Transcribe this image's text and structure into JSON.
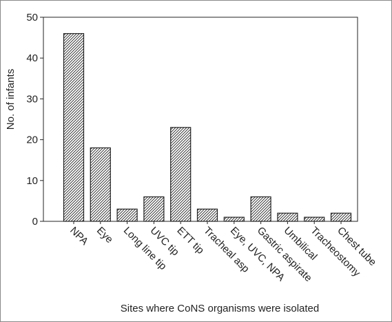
{
  "chart_data": {
    "type": "bar",
    "xlabel": "Sites where CoNS organisms were isolated",
    "ylabel": "No. of infants",
    "ylim": [
      0,
      50
    ],
    "yticks": [
      0,
      10,
      20,
      30,
      40,
      50
    ],
    "grid": false,
    "legend": "none",
    "bar_fill": "hatched",
    "categories": [
      "NPA",
      "Eye",
      "Long line tip",
      "UVC tip",
      "ETT tip",
      "Tracheal asp",
      "Eye, UVC, NPA",
      "Gastric aspirate",
      "Umbilical",
      "Tracheostomy",
      "Chest tube"
    ],
    "values": [
      46,
      18,
      3,
      6,
      23,
      3,
      1,
      6,
      2,
      1,
      2
    ]
  },
  "colors": {
    "bar_stroke": "#222222",
    "hatch": "#222222",
    "axis": "#222222",
    "frame": "#888888"
  }
}
